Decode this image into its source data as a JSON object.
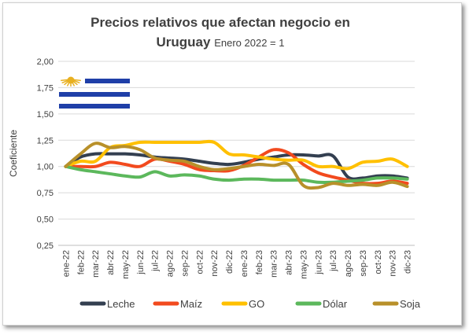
{
  "chart_data": {
    "type": "line",
    "title_line1": "Precios relativos que afectan negocio en",
    "title_line2": "Uruguay",
    "subtitle": "Enero 2022 = 1",
    "ylabel": "Coeficiente",
    "xlabel": "",
    "ylim": [
      0.25,
      2.0
    ],
    "yticks": [
      "0,25",
      "0,50",
      "0,75",
      "1,00",
      "1,25",
      "1,50",
      "1,75",
      "2,00"
    ],
    "legend_position": "bottom",
    "grid": "horizontal",
    "categories": [
      "ene-22",
      "feb-22",
      "mar-22",
      "abr-22",
      "may-22",
      "jun-22",
      "jul-22",
      "ago-22",
      "sep-22",
      "oct-22",
      "nov-22",
      "dic-22",
      "ene-23",
      "feb-23",
      "mar-23",
      "abr-23",
      "may-23",
      "jun-23",
      "jul-23",
      "ago-23",
      "sep-23",
      "oct-23",
      "nov-23",
      "dic-23"
    ],
    "series": [
      {
        "name": "Leche",
        "color": "#333f50",
        "values": [
          1.0,
          1.09,
          1.12,
          1.12,
          1.12,
          1.11,
          1.09,
          1.08,
          1.07,
          1.05,
          1.03,
          1.02,
          1.04,
          1.07,
          1.09,
          1.11,
          1.11,
          1.1,
          1.1,
          0.9,
          0.89,
          0.91,
          0.91,
          0.89
        ]
      },
      {
        "name": "Maíz",
        "color": "#f24a1e",
        "values": [
          1.0,
          1.0,
          1.0,
          1.04,
          1.02,
          1.0,
          1.07,
          1.05,
          1.02,
          0.97,
          0.96,
          0.96,
          1.01,
          1.09,
          1.16,
          1.13,
          1.02,
          0.94,
          0.9,
          0.87,
          0.84,
          0.84,
          0.86,
          0.84
        ]
      },
      {
        "name": "GO",
        "color": "#ffc000",
        "values": [
          1.0,
          1.05,
          1.05,
          1.18,
          1.2,
          1.23,
          1.23,
          1.23,
          1.23,
          1.23,
          1.23,
          1.12,
          1.11,
          1.09,
          1.07,
          1.06,
          1.06,
          1.0,
          1.0,
          0.98,
          1.04,
          1.05,
          1.07,
          1.0
        ]
      },
      {
        "name": "Dólar",
        "color": "#5cb85c",
        "values": [
          1.0,
          0.97,
          0.95,
          0.93,
          0.91,
          0.9,
          0.95,
          0.91,
          0.92,
          0.91,
          0.88,
          0.87,
          0.88,
          0.88,
          0.87,
          0.87,
          0.87,
          0.85,
          0.85,
          0.86,
          0.87,
          0.89,
          0.89,
          0.88
        ]
      },
      {
        "name": "Soja",
        "color": "#b8902a",
        "values": [
          1.0,
          1.12,
          1.22,
          1.18,
          1.19,
          1.16,
          1.08,
          1.06,
          1.05,
          1.0,
          0.97,
          0.98,
          1.0,
          1.02,
          1.01,
          1.02,
          0.82,
          0.8,
          0.84,
          0.82,
          0.83,
          0.82,
          0.85,
          0.81
        ]
      }
    ]
  },
  "flag": {
    "blue": "#1f3fa8",
    "white": "#ffffff",
    "sun": "#e8b020"
  }
}
